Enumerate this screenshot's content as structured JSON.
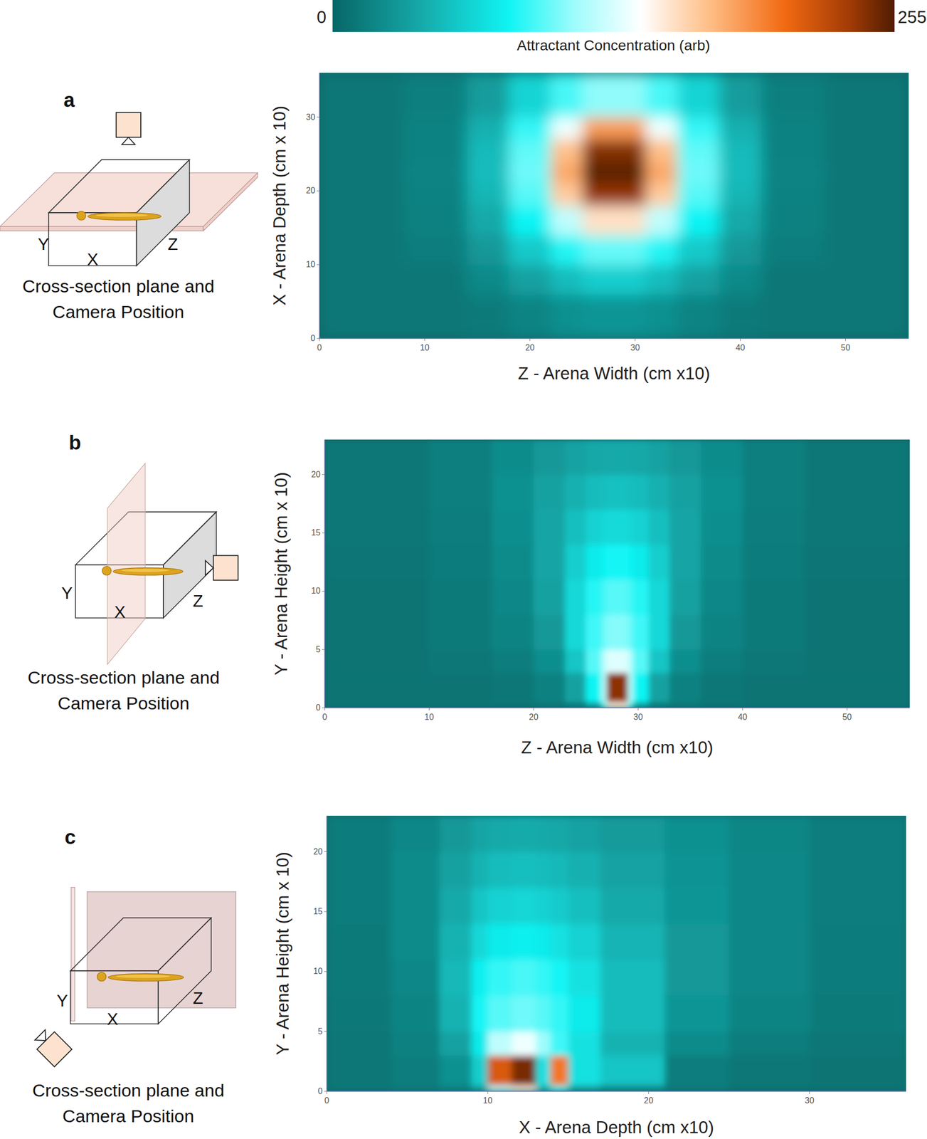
{
  "colorbar": {
    "label": "Attractant Concentration (arb)",
    "range": [
      0,
      255
    ],
    "ticks": [
      0,
      255
    ]
  },
  "chart_data": [
    {
      "type": "heatmap",
      "panel_label": "a",
      "x_label": "Z - Arena Width (cm x10)",
      "y_label": "X - Arena Depth (cm x 10)",
      "xlim": [
        0,
        56
      ],
      "xticks": [
        0,
        10,
        20,
        30,
        40,
        50
      ],
      "ylim": [
        0,
        36
      ],
      "yticks": [
        0,
        10,
        20,
        30
      ],
      "x_edges": [
        0,
        8,
        14,
        18,
        22,
        25,
        28,
        31,
        34,
        38,
        42,
        48,
        56
      ],
      "y_edges": [
        0,
        6,
        10,
        14,
        18,
        21,
        24,
        27,
        30,
        36
      ],
      "cells": [
        [
          10,
          10,
          12,
          18,
          25,
          28,
          28,
          25,
          18,
          12,
          10,
          10
        ],
        [
          10,
          10,
          21,
          35,
          50,
          60,
          60,
          50,
          35,
          21,
          10,
          10
        ],
        [
          10,
          14,
          30,
          57,
          84,
          98,
          98,
          84,
          57,
          30,
          14,
          10
        ],
        [
          10,
          16,
          40,
          80,
          120,
          155,
          155,
          120,
          80,
          40,
          16,
          10
        ],
        [
          10,
          17,
          47,
          95,
          165,
          238,
          238,
          165,
          95,
          47,
          17,
          10
        ],
        [
          10,
          18,
          50,
          100,
          180,
          252,
          252,
          180,
          100,
          50,
          18,
          10
        ],
        [
          10,
          17,
          49,
          97,
          170,
          242,
          242,
          170,
          97,
          49,
          17,
          10
        ],
        [
          10,
          17,
          44,
          88,
          135,
          185,
          185,
          135,
          88,
          44,
          17,
          10
        ],
        [
          10,
          15,
          32,
          63,
          92,
          107,
          107,
          92,
          63,
          32,
          15,
          10
        ]
      ],
      "diagram": {
        "axis_letters": [
          "Y",
          "X",
          "Z"
        ],
        "caption": [
          "Cross-section plane and",
          "Camera Position"
        ]
      }
    },
    {
      "type": "heatmap",
      "panel_label": "b",
      "x_label": "Z - Arena Width (cm x10)",
      "y_label": "Y - Arena Height (cm x 10)",
      "xlim": [
        0,
        56
      ],
      "xticks": [
        0,
        10,
        20,
        30,
        40,
        50
      ],
      "ylim": [
        0,
        23
      ],
      "yticks": [
        0,
        5,
        10,
        15,
        20
      ],
      "x_edges": [
        0,
        10,
        16,
        20,
        23,
        25,
        26.5,
        27,
        29,
        29.5,
        31,
        33,
        36,
        40,
        46,
        56
      ],
      "y_edges": [
        0,
        0.5,
        3,
        5,
        8,
        11,
        14,
        17,
        20,
        23
      ],
      "cells": [
        [
          8,
          8,
          8,
          10,
          14,
          30,
          90,
          150,
          90,
          30,
          14,
          10,
          8,
          8,
          8
        ],
        [
          8,
          8,
          10,
          16,
          35,
          80,
          120,
          240,
          120,
          80,
          35,
          16,
          10,
          8,
          8
        ],
        [
          8,
          10,
          14,
          24,
          55,
          95,
          120,
          130,
          120,
          95,
          55,
          24,
          14,
          10,
          8
        ],
        [
          8,
          12,
          18,
          30,
          65,
          90,
          100,
          105,
          100,
          90,
          65,
          30,
          18,
          12,
          8
        ],
        [
          8,
          12,
          20,
          35,
          65,
          85,
          92,
          95,
          92,
          85,
          65,
          35,
          20,
          12,
          8
        ],
        [
          9,
          13,
          22,
          37,
          60,
          75,
          80,
          82,
          80,
          75,
          60,
          37,
          22,
          13,
          9
        ],
        [
          10,
          14,
          24,
          37,
          52,
          62,
          65,
          66,
          65,
          62,
          52,
          37,
          24,
          14,
          10
        ],
        [
          10,
          15,
          25,
          35,
          44,
          50,
          52,
          53,
          52,
          50,
          44,
          35,
          25,
          15,
          10
        ],
        [
          10,
          15,
          23,
          30,
          36,
          39,
          40,
          40,
          40,
          39,
          36,
          30,
          23,
          15,
          10
        ]
      ],
      "diagram": {
        "axis_letters": [
          "Y",
          "X",
          "Z"
        ],
        "caption": [
          "Cross-section plane and",
          "Camera Position"
        ]
      }
    },
    {
      "type": "heatmap",
      "panel_label": "c",
      "x_label": "X - Arena Depth (cm x10)",
      "y_label": "Y - Arena Height (cm x 10)",
      "xlim": [
        0,
        36
      ],
      "xticks": [
        0,
        10,
        20,
        30
      ],
      "ylim": [
        0,
        23
      ],
      "yticks": [
        0,
        5,
        10,
        15,
        20
      ],
      "x_edges": [
        0,
        4,
        7,
        9,
        10,
        11.5,
        13,
        13.9,
        15,
        17,
        21,
        25,
        30,
        36
      ],
      "y_edges": [
        0,
        0.5,
        3,
        5,
        8,
        11,
        14,
        17,
        20,
        23
      ],
      "cells": [
        [
          10,
          12,
          16,
          30,
          120,
          150,
          40,
          80,
          30,
          20,
          12,
          8,
          8
        ],
        [
          10,
          14,
          25,
          60,
          215,
          245,
          70,
          200,
          70,
          55,
          14,
          10,
          8
        ],
        [
          10,
          16,
          35,
          75,
          120,
          135,
          110,
          90,
          70,
          45,
          22,
          14,
          10
        ],
        [
          11,
          18,
          45,
          82,
          95,
          100,
          95,
          88,
          75,
          50,
          28,
          18,
          12
        ],
        [
          12,
          20,
          48,
          78,
          88,
          92,
          88,
          82,
          70,
          50,
          30,
          20,
          13
        ],
        [
          12,
          22,
          45,
          65,
          75,
          78,
          75,
          70,
          62,
          46,
          30,
          20,
          13
        ],
        [
          13,
          22,
          40,
          55,
          62,
          64,
          62,
          58,
          52,
          40,
          28,
          20,
          14
        ],
        [
          13,
          22,
          35,
          45,
          50,
          52,
          50,
          48,
          44,
          36,
          27,
          20,
          14
        ],
        [
          13,
          20,
          30,
          37,
          40,
          41,
          40,
          39,
          36,
          31,
          25,
          19,
          14
        ]
      ],
      "diagram": {
        "axis_letters": [
          "Y",
          "X",
          "Z"
        ],
        "caption": [
          "Cross-section plane and",
          "Camera Position"
        ]
      }
    }
  ]
}
